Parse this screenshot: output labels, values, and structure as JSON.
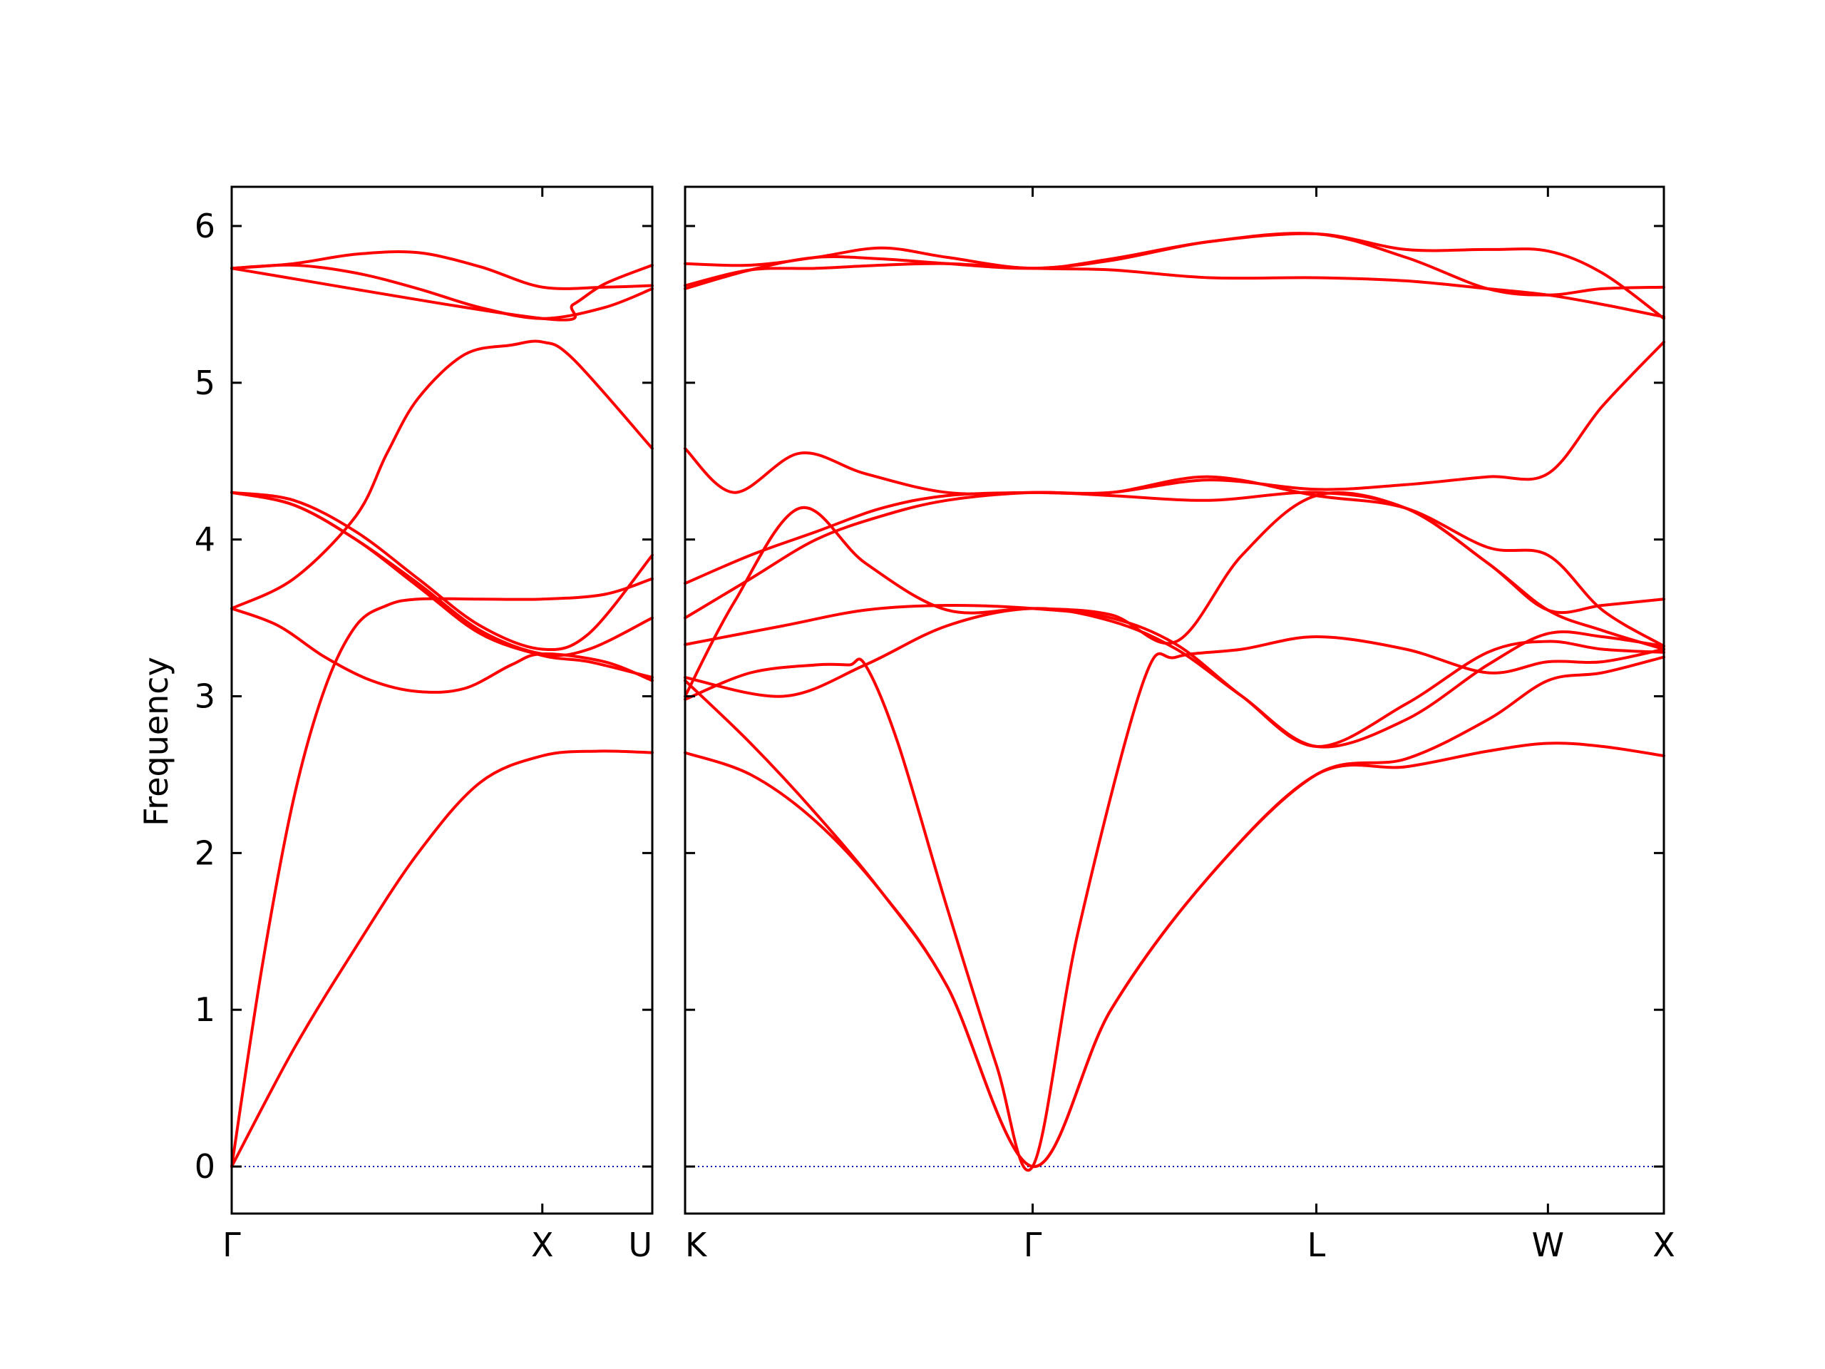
{
  "chart_data": {
    "type": "line",
    "title": "",
    "ylabel": "Frequency",
    "ylim": [
      -0.3,
      6.25
    ],
    "yticks": [
      0,
      1,
      2,
      3,
      4,
      5,
      6
    ],
    "colors": {
      "bands": "#ff0000",
      "zero_line": "#0000aa"
    },
    "panels": [
      {
        "labels": [
          "Γ",
          "X",
          "U"
        ],
        "label_positions": [
          0,
          1,
          1.354
        ],
        "xlim": [
          0,
          1.354
        ],
        "series": [
          {
            "x": [
              0,
              0.2,
              0.4,
              0.6,
              0.8,
              1.0,
              1.18,
              1.354
            ],
            "values": [
              0,
              0.75,
              1.4,
              2.0,
              2.45,
              2.62,
              2.65,
              2.64
            ]
          },
          {
            "x": [
              0,
              0.1,
              0.2,
              0.3,
              0.4,
              0.5,
              0.6,
              0.8,
              1.0,
              1.2,
              1.354
            ],
            "values": [
              0,
              1.3,
              2.35,
              3.05,
              3.45,
              3.58,
              3.62,
              3.62,
              3.62,
              3.65,
              3.75
            ]
          },
          {
            "x": [
              0,
              0.15,
              0.3,
              0.45,
              0.6,
              0.75,
              0.9,
              1.0,
              1.2,
              1.354
            ],
            "values": [
              3.56,
              3.45,
              3.25,
              3.1,
              3.03,
              3.05,
              3.2,
              3.27,
              3.22,
              3.1
            ]
          },
          {
            "x": [
              0,
              0.2,
              0.4,
              0.5,
              0.6,
              0.75,
              0.9,
              1.0,
              1.1,
              1.354
            ],
            "values": [
              3.56,
              3.75,
              4.15,
              4.55,
              4.9,
              5.18,
              5.24,
              5.26,
              5.15,
              4.58
            ]
          },
          {
            "x": [
              0,
              0.2,
              0.4,
              0.6,
              0.8,
              1.0,
              1.15,
              1.354
            ],
            "values": [
              4.3,
              4.25,
              4.05,
              3.75,
              3.45,
              3.3,
              3.4,
              3.9
            ]
          },
          {
            "x": [
              0,
              0.2,
              0.4,
              0.6,
              0.8,
              1.0,
              1.15,
              1.354
            ],
            "values": [
              4.3,
              4.22,
              4.0,
              3.72,
              3.42,
              3.27,
              3.3,
              3.5
            ]
          },
          {
            "x": [
              0,
              0.2,
              0.4,
              0.6,
              0.8,
              1.0,
              1.15,
              1.354
            ],
            "values": [
              4.3,
              4.22,
              4.0,
              3.7,
              3.4,
              3.26,
              3.22,
              3.12
            ]
          },
          {
            "x": [
              0,
              0.2,
              0.4,
              0.6,
              0.8,
              1.0,
              1.2,
              1.354
            ],
            "values": [
              5.73,
              5.75,
              5.7,
              5.6,
              5.48,
              5.41,
              5.48,
              5.6
            ]
          },
          {
            "x": [
              0,
              0.2,
              0.4,
              0.6,
              0.8,
              1.0,
              1.2,
              1.354
            ],
            "values": [
              5.73,
              5.76,
              5.82,
              5.83,
              5.74,
              5.61,
              5.61,
              5.62
            ]
          },
          {
            "x": [
              0,
              1.0,
              1.1,
              1.2,
              1.354
            ],
            "values": [
              5.73,
              5.41,
              5.5,
              5.63,
              5.75
            ]
          }
        ]
      },
      {
        "labels": [
          "K",
          "Γ",
          "L",
          "W",
          "X"
        ],
        "label_positions": [
          0,
          1.061,
          1.927,
          2.634,
          2.988
        ],
        "xlim": [
          0,
          2.988
        ],
        "series": [
          {
            "x": [
              0,
              0.2,
              0.4,
              0.6,
              0.8,
              1.061,
              1.3,
              1.6,
              1.927,
              2.2,
              2.45,
              2.634,
              2.8,
              2.988
            ],
            "values": [
              2.64,
              2.5,
              2.2,
              1.75,
              1.15,
              0,
              1.0,
              1.85,
              2.5,
              2.55,
              2.65,
              2.7,
              2.68,
              2.62
            ]
          },
          {
            "x": [
              0,
              0.2,
              0.4,
              0.6,
              0.8,
              1.061,
              1.3,
              1.6,
              1.927,
              2.2,
              2.45,
              2.634,
              2.8,
              2.988
            ],
            "values": [
              3.1,
              2.7,
              2.25,
              1.75,
              1.15,
              0,
              1.0,
              1.85,
              2.5,
              2.6,
              2.85,
              3.1,
              3.15,
              3.25
            ]
          },
          {
            "x": [
              0,
              0.2,
              0.4,
              0.5,
              0.55,
              0.65,
              0.8,
              0.95,
              1.061,
              1.2,
              1.4,
              1.5,
              1.7,
              1.927,
              2.2,
              2.45,
              2.634,
              2.8,
              2.988
            ],
            "values": [
              2.98,
              3.15,
              3.2,
              3.2,
              3.2,
              2.7,
              1.65,
              0.65,
              0,
              1.5,
              3.1,
              3.25,
              3.3,
              3.38,
              3.3,
              3.15,
              3.22,
              3.22,
              3.3
            ]
          },
          {
            "x": [
              0,
              0.3,
              0.55,
              0.8,
              1.061,
              1.3,
              1.5,
              1.7,
              1.927,
              2.2,
              2.45,
              2.634,
              2.8,
              2.988
            ],
            "values": [
              3.12,
              3.0,
              3.2,
              3.45,
              3.56,
              3.48,
              3.3,
              3.0,
              2.68,
              2.85,
              3.2,
              3.4,
              3.38,
              3.32
            ]
          },
          {
            "x": [
              0,
              0.3,
              0.55,
              0.8,
              1.061,
              1.3,
              1.5,
              1.7,
              1.927,
              2.2,
              2.45,
              2.634,
              2.8,
              2.988
            ],
            "values": [
              3.33,
              3.45,
              3.55,
              3.58,
              3.56,
              3.5,
              3.33,
              3.0,
              2.68,
              2.95,
              3.28,
              3.35,
              3.3,
              3.28
            ]
          },
          {
            "x": [
              0,
              0.15,
              0.35,
              0.55,
              0.8,
              1.061,
              1.3,
              1.5,
              1.7,
              1.927,
              2.2,
              2.45,
              2.634,
              2.8,
              2.988
            ],
            "values": [
              3.0,
              3.6,
              4.2,
              3.85,
              3.55,
              3.56,
              3.52,
              3.35,
              3.9,
              4.28,
              4.2,
              3.85,
              3.55,
              3.42,
              3.3
            ]
          },
          {
            "x": [
              0,
              0.2,
              0.4,
              0.6,
              0.8,
              1.061,
              1.3,
              1.6,
              1.927,
              2.2,
              2.45,
              2.634,
              2.8,
              2.988
            ],
            "values": [
              3.5,
              3.75,
              4.0,
              4.15,
              4.25,
              4.3,
              4.28,
              4.25,
              4.3,
              4.2,
              3.85,
              3.55,
              3.58,
              3.62
            ]
          },
          {
            "x": [
              0,
              0.2,
              0.4,
              0.6,
              0.8,
              1.061,
              1.3,
              1.6,
              1.927,
              2.2,
              2.45,
              2.634,
              2.8,
              2.988
            ],
            "values": [
              3.72,
              3.9,
              4.05,
              4.2,
              4.28,
              4.3,
              4.3,
              4.38,
              4.32,
              4.35,
              4.4,
              4.42,
              4.85,
              5.26
            ]
          },
          {
            "x": [
              0,
              0.15,
              0.35,
              0.55,
              0.8,
              1.061,
              1.3,
              1.6,
              1.927,
              2.2,
              2.45,
              2.634,
              2.8,
              2.988
            ],
            "values": [
              4.58,
              4.3,
              4.55,
              4.42,
              4.3,
              4.3,
              4.3,
              4.4,
              4.28,
              4.2,
              3.95,
              3.9,
              3.55,
              3.32
            ]
          },
          {
            "x": [
              0,
              0.2,
              0.4,
              0.6,
              0.8,
              1.061,
              1.3,
              1.6,
              1.927,
              2.2,
              2.45,
              2.634,
              2.8,
              2.988
            ],
            "values": [
              5.62,
              5.72,
              5.73,
              5.75,
              5.76,
              5.73,
              5.72,
              5.67,
              5.67,
              5.65,
              5.6,
              5.56,
              5.5,
              5.42
            ]
          },
          {
            "x": [
              0,
              0.2,
              0.4,
              0.6,
              0.8,
              1.061,
              1.3,
              1.6,
              1.927,
              2.2,
              2.45,
              2.634,
              2.8,
              2.988
            ],
            "values": [
              5.6,
              5.72,
              5.8,
              5.79,
              5.76,
              5.73,
              5.78,
              5.9,
              5.95,
              5.8,
              5.6,
              5.56,
              5.6,
              5.61
            ]
          },
          {
            "x": [
              0,
              0.2,
              0.4,
              0.6,
              0.8,
              1.061,
              1.3,
              1.6,
              1.927,
              2.2,
              2.45,
              2.634,
              2.8,
              2.988
            ],
            "values": [
              5.76,
              5.75,
              5.8,
              5.86,
              5.8,
              5.73,
              5.79,
              5.9,
              5.95,
              5.85,
              5.85,
              5.84,
              5.7,
              5.41
            ]
          }
        ]
      }
    ]
  }
}
